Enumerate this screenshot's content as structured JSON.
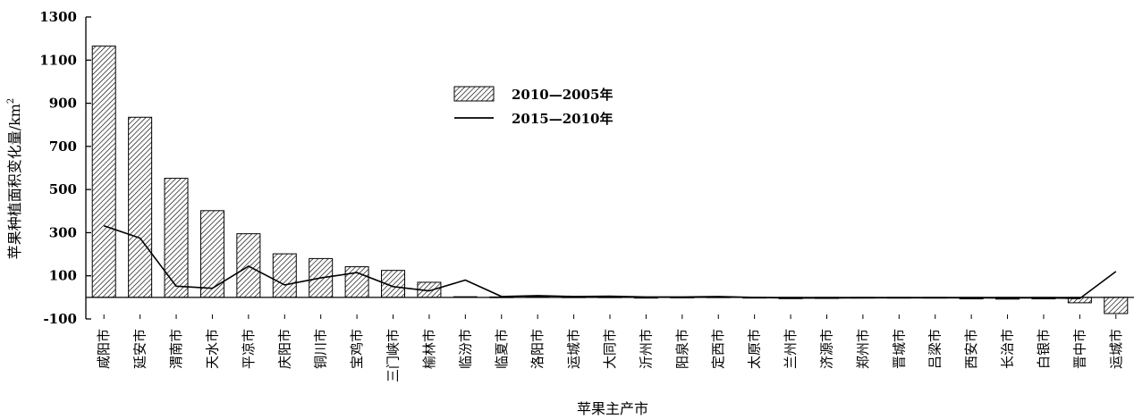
{
  "chart_data": {
    "type": "bar",
    "xlabel": "苹果主产市",
    "ylabel": "苹果种植面积变化量/km",
    "ylabel_superscript": "2",
    "ylim": [
      -100,
      1300
    ],
    "yticks": [
      1300,
      1100,
      900,
      700,
      500,
      300,
      100,
      -100
    ],
    "legend_position": "top-center",
    "grid": false,
    "categories": [
      "咸阳市",
      "延安市",
      "渭南市",
      "天水市",
      "平凉市",
      "庆阳市",
      "铜川市",
      "宝鸡市",
      "三门峡市",
      "榆林市",
      "临汾市",
      "临夏市",
      "洛阳市",
      "运城市",
      "大同市",
      "沂州市",
      "阳泉市",
      "定西市",
      "太原市",
      "兰州市",
      "济源市",
      "郑州市",
      "晋城市",
      "吕梁市",
      "西安市",
      "长治市",
      "白银市",
      "晋中市",
      "运城市"
    ],
    "series": [
      {
        "name": "2010—2005年",
        "type": "bar",
        "pattern": "diagonal-hatch",
        "values": [
          1165,
          835,
          552,
          402,
          295,
          202,
          180,
          142,
          125,
          70,
          3,
          2,
          4,
          2,
          2,
          0,
          1,
          2,
          -1,
          -6,
          -5,
          -3,
          -3,
          -3,
          -7,
          -8,
          -7,
          -25,
          -75
        ]
      },
      {
        "name": "2015—2010年",
        "type": "line",
        "values": [
          332,
          275,
          52,
          42,
          145,
          58,
          90,
          115,
          50,
          30,
          80,
          4,
          8,
          4,
          5,
          2,
          2,
          4,
          0,
          -3,
          -3,
          -2,
          -2,
          -2,
          -2,
          -3,
          -2,
          -5,
          120
        ]
      }
    ]
  },
  "colors": {
    "axis": "#000000",
    "bar_fill": "#ffffff",
    "hatch": "#000000",
    "line": "#000000"
  }
}
